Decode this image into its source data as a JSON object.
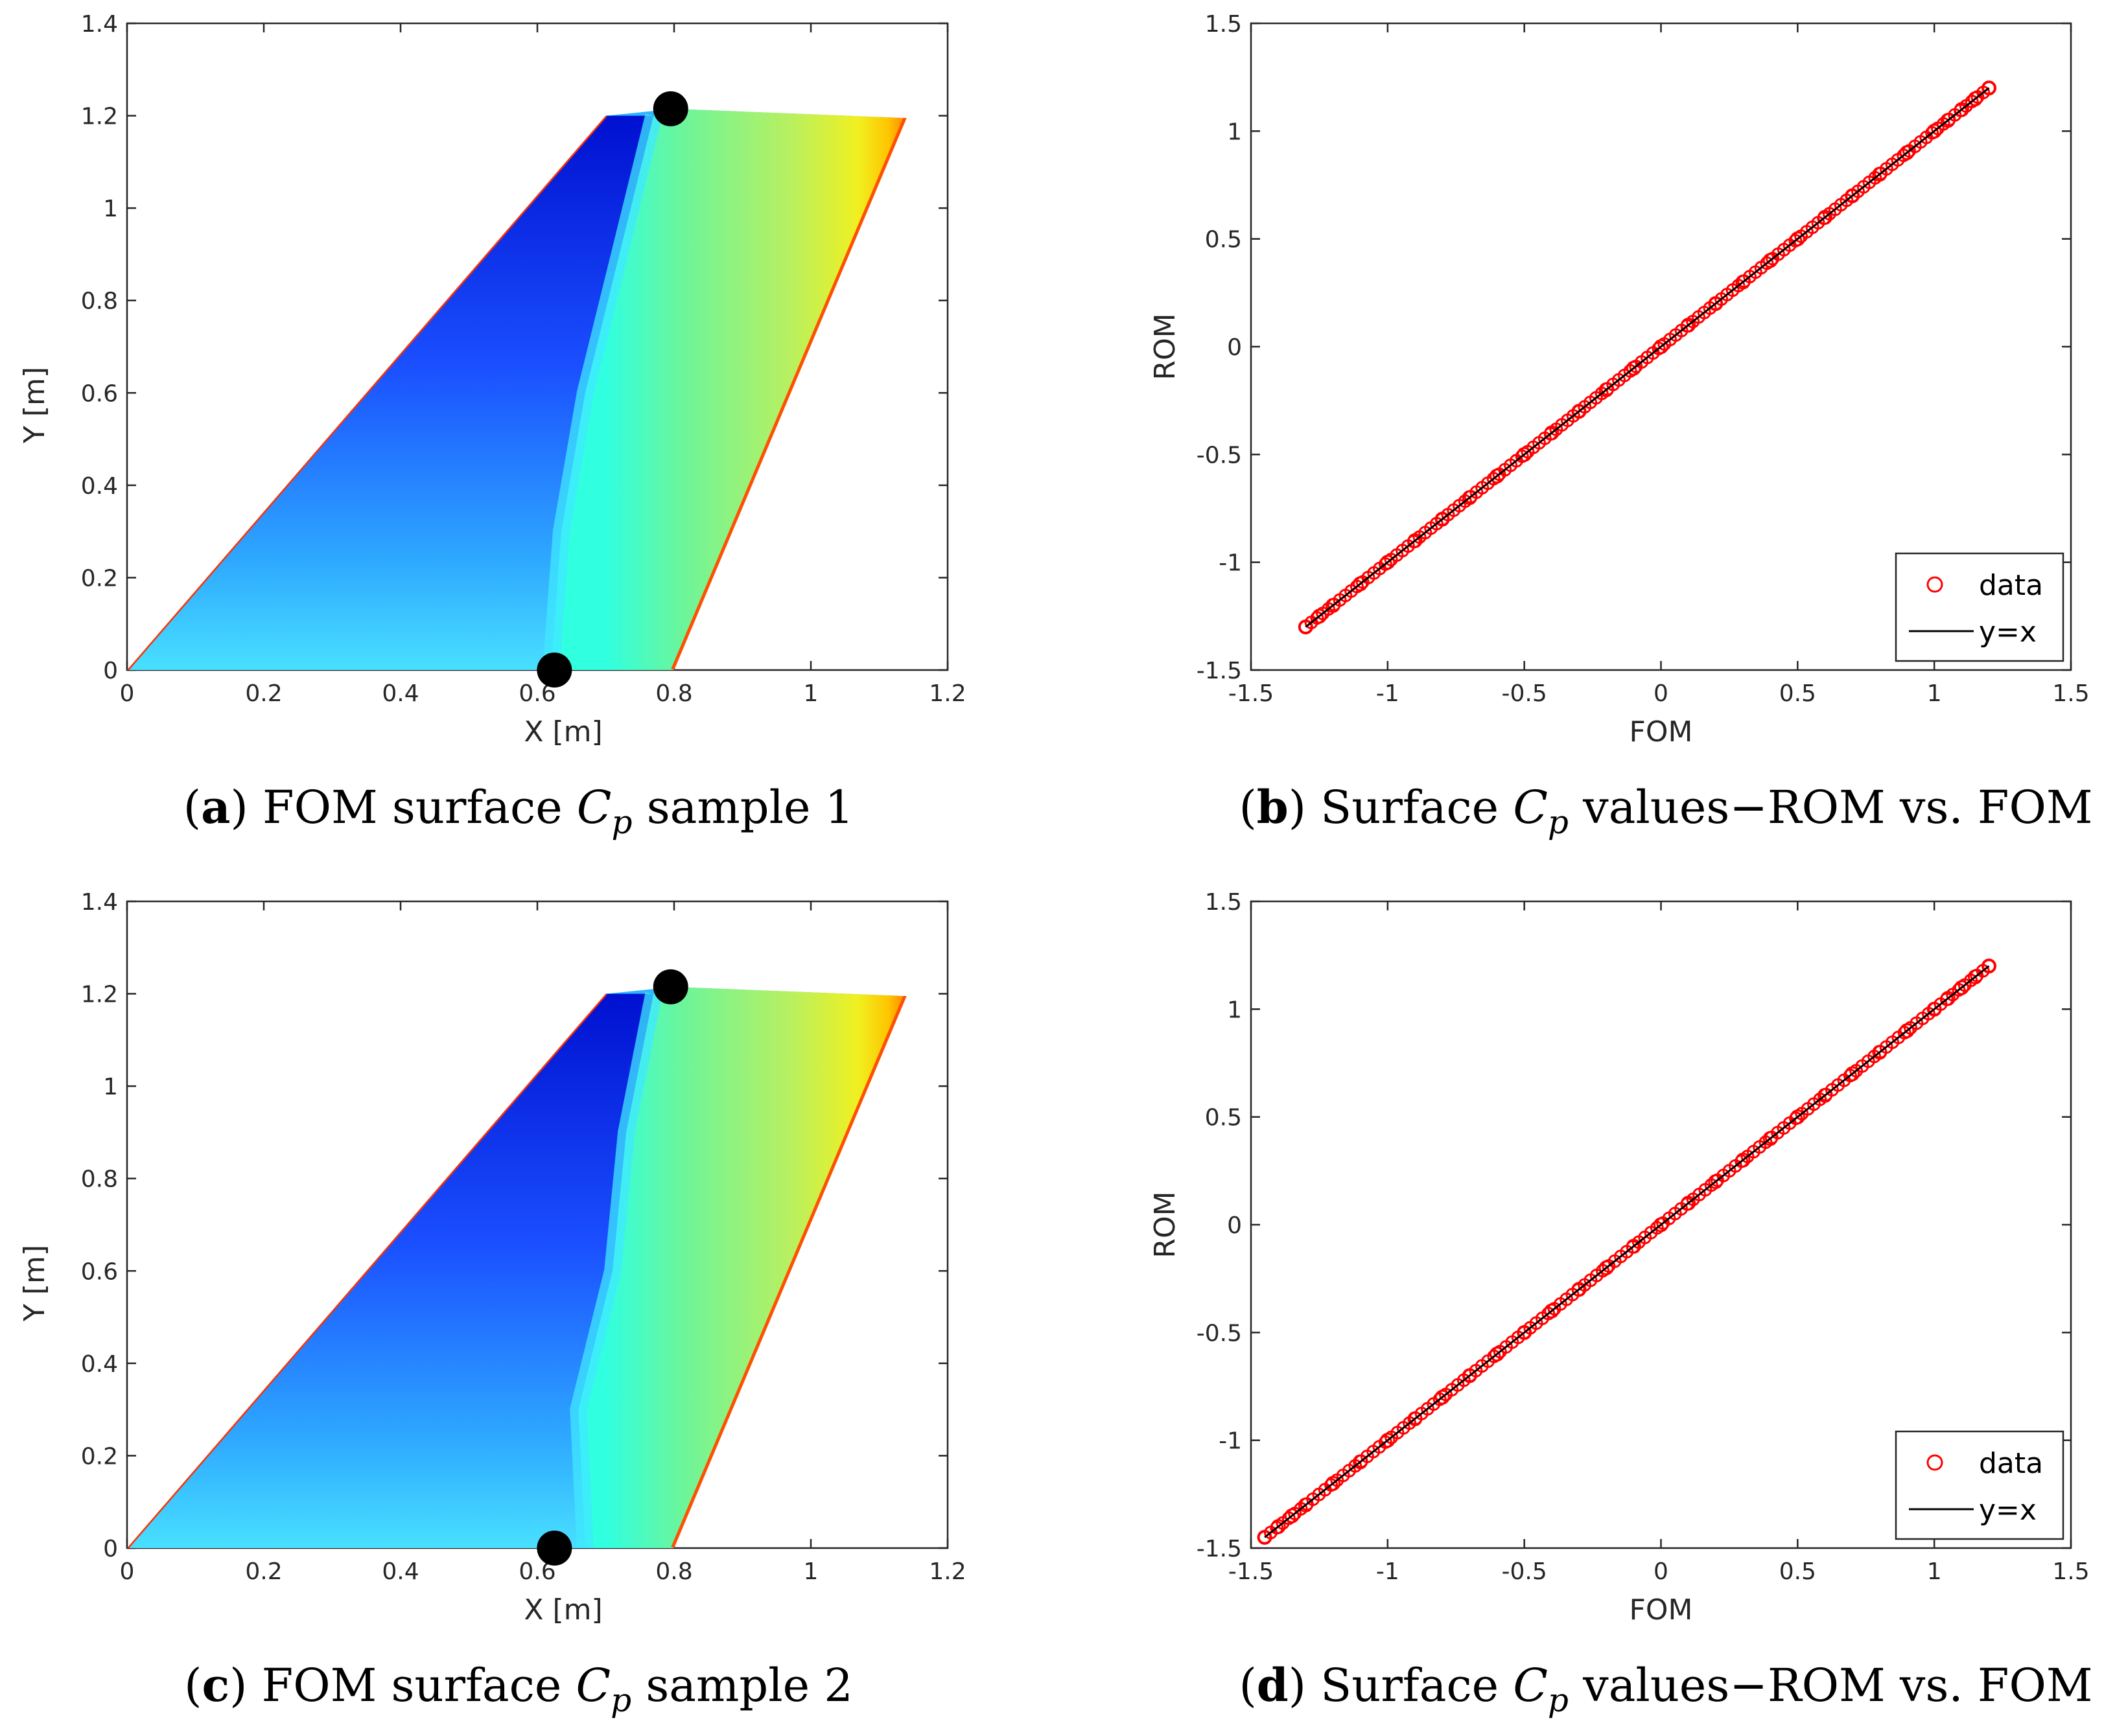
{
  "colors": {
    "marker": "#ff0000",
    "identity_line": "#000000",
    "axis": "#262626",
    "colormap_stops": [
      "#00007f",
      "#0000ff",
      "#007fff",
      "#00ffff",
      "#7fff7f",
      "#ffff00",
      "#ff7f00",
      "#ff0000"
    ]
  },
  "panels": [
    {
      "id": "a",
      "caption": {
        "letter": "a",
        "before": "FOM surface ",
        "math": "C",
        "sub": "p",
        "after": " sample 1"
      },
      "chart_data": {
        "type": "heatmap",
        "title": "FOM surface Cp sample 1",
        "xlabel": "X [m]",
        "ylabel": "Y [m]",
        "xlim": [
          0,
          1.2
        ],
        "ylim": [
          0,
          1.4
        ],
        "xticks": [
          "0",
          "0.2",
          "0.4",
          "0.6",
          "0.8",
          "1",
          "1.2"
        ],
        "yticks": [
          "0",
          "0.2",
          "0.4",
          "0.6",
          "0.8",
          "1",
          "1.2",
          "1.4"
        ],
        "wing_outline": [
          [
            0,
            0
          ],
          [
            0.7,
            1.2
          ],
          [
            0.8,
            1.215
          ],
          [
            1.14,
            1.195
          ],
          [
            0.8,
            0
          ]
        ],
        "markers": [
          [
            0.625,
            0
          ],
          [
            0.795,
            1.215
          ]
        ],
        "shock_line": [
          [
            0.62,
            0
          ],
          [
            0.635,
            0.3
          ],
          [
            0.67,
            0.6
          ],
          [
            0.72,
            0.9
          ],
          [
            0.77,
            1.2
          ]
        ],
        "colormap": "jet",
        "colorbar": false
      }
    },
    {
      "id": "b",
      "caption": {
        "letter": "b",
        "before": "Surface ",
        "math": "C",
        "sub": "p",
        "after": " values−ROM vs. FOM"
      },
      "chart_data": {
        "type": "scatter",
        "title": "Surface Cp values−ROM vs. FOM",
        "xlabel": "FOM",
        "ylabel": "ROM",
        "xlim": [
          -1.5,
          1.5
        ],
        "ylim": [
          -1.5,
          1.5
        ],
        "xticks": [
          "-1.5",
          "-1",
          "-0.5",
          "0",
          "0.5",
          "1",
          "1.5"
        ],
        "yticks": [
          "-1.5",
          "-1",
          "-0.5",
          "0",
          "0.5",
          "1",
          "1.5"
        ],
        "data_range": [
          -1.3,
          1.2
        ],
        "series": [
          {
            "name": "data",
            "style": "red open circles",
            "x": [
              -1.3,
              -1.25,
              -1.2,
              -1.1,
              -1.0,
              -0.9,
              -0.8,
              -0.7,
              -0.6,
              -0.5,
              -0.4,
              -0.3,
              -0.2,
              -0.1,
              0,
              0.1,
              0.2,
              0.3,
              0.4,
              0.5,
              0.6,
              0.7,
              0.8,
              0.9,
              1.0,
              1.05,
              1.1,
              1.15,
              1.2
            ],
            "y": [
              -1.3,
              -1.25,
              -1.2,
              -1.1,
              -1.0,
              -0.9,
              -0.8,
              -0.7,
              -0.6,
              -0.5,
              -0.4,
              -0.3,
              -0.2,
              -0.1,
              0,
              0.1,
              0.2,
              0.3,
              0.4,
              0.5,
              0.6,
              0.7,
              0.8,
              0.9,
              1.0,
              1.05,
              1.1,
              1.15,
              1.2
            ]
          },
          {
            "name": "y=x",
            "style": "black line",
            "x": [
              -1.3,
              1.2
            ],
            "y": [
              -1.3,
              1.2
            ]
          }
        ],
        "legend": [
          "data",
          "y=x"
        ],
        "legend_position": "bottom-right"
      }
    },
    {
      "id": "c",
      "caption": {
        "letter": "c",
        "before": "FOM surface ",
        "math": "C",
        "sub": "p",
        "after": " sample 2"
      },
      "chart_data": {
        "type": "heatmap",
        "title": "FOM surface Cp sample 2",
        "xlabel": "X [m]",
        "ylabel": "Y [m]",
        "xlim": [
          0,
          1.2
        ],
        "ylim": [
          0,
          1.4
        ],
        "xticks": [
          "0",
          "0.2",
          "0.4",
          "0.6",
          "0.8",
          "1",
          "1.2"
        ],
        "yticks": [
          "0",
          "0.2",
          "0.4",
          "0.6",
          "0.8",
          "1",
          "1.2",
          "1.4"
        ],
        "wing_outline": [
          [
            0,
            0
          ],
          [
            0.7,
            1.2
          ],
          [
            0.8,
            1.215
          ],
          [
            1.14,
            1.195
          ],
          [
            0.8,
            0
          ]
        ],
        "markers": [
          [
            0.625,
            0
          ],
          [
            0.795,
            1.215
          ]
        ],
        "shock_line": [
          [
            0.67,
            0
          ],
          [
            0.66,
            0.3
          ],
          [
            0.71,
            0.6
          ],
          [
            0.73,
            0.9
          ],
          [
            0.77,
            1.2
          ]
        ],
        "colormap": "jet",
        "colorbar": false
      }
    },
    {
      "id": "d",
      "caption": {
        "letter": "d",
        "before": "Surface ",
        "math": "C",
        "sub": "p",
        "after": " values−ROM vs. FOM"
      },
      "chart_data": {
        "type": "scatter",
        "title": "Surface Cp values−ROM vs. FOM",
        "xlabel": "FOM",
        "ylabel": "ROM",
        "xlim": [
          -1.5,
          1.5
        ],
        "ylim": [
          -1.5,
          1.5
        ],
        "xticks": [
          "-1.5",
          "-1",
          "-0.5",
          "0",
          "0.5",
          "1",
          "1.5"
        ],
        "yticks": [
          "-1.5",
          "-1",
          "-0.5",
          "0",
          "0.5",
          "1",
          "1.5"
        ],
        "data_range": [
          -1.45,
          1.2
        ],
        "series": [
          {
            "name": "data",
            "style": "red open circles",
            "x": [
              -1.45,
              -1.4,
              -1.35,
              -1.3,
              -1.2,
              -1.1,
              -1.0,
              -0.9,
              -0.8,
              -0.7,
              -0.6,
              -0.5,
              -0.4,
              -0.3,
              -0.2,
              -0.1,
              0,
              0.1,
              0.2,
              0.3,
              0.4,
              0.5,
              0.6,
              0.7,
              0.8,
              0.9,
              1.0,
              1.05,
              1.1,
              1.15,
              1.2
            ],
            "y": [
              -1.45,
              -1.4,
              -1.35,
              -1.3,
              -1.2,
              -1.1,
              -1.0,
              -0.9,
              -0.8,
              -0.7,
              -0.6,
              -0.5,
              -0.4,
              -0.3,
              -0.2,
              -0.1,
              0,
              0.1,
              0.2,
              0.3,
              0.4,
              0.5,
              0.6,
              0.7,
              0.8,
              0.9,
              1.0,
              1.05,
              1.1,
              1.15,
              1.2
            ]
          },
          {
            "name": "y=x",
            "style": "black line",
            "x": [
              -1.45,
              1.2
            ],
            "y": [
              -1.45,
              1.2
            ]
          }
        ],
        "legend": [
          "data",
          "y=x"
        ],
        "legend_position": "bottom-right"
      }
    }
  ]
}
